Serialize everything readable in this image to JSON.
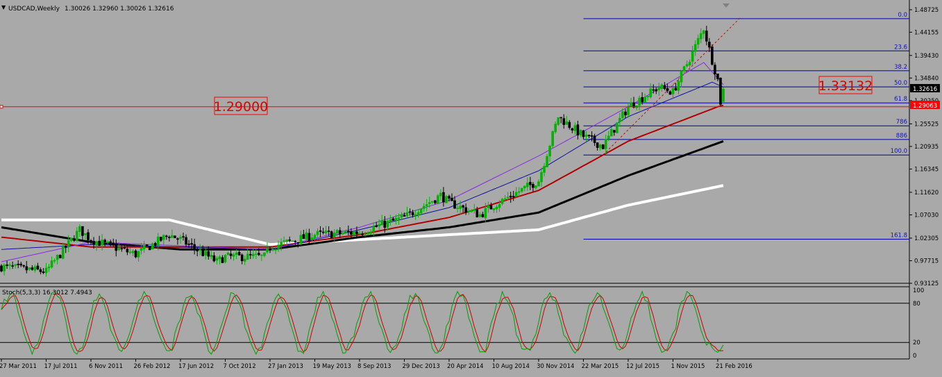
{
  "header": {
    "symbol": "USDCAD,Weekly",
    "ohlc": "1.30026 1.32960 1.30026 1.32616"
  },
  "stoch_header": "Stoch(5,3,3) 16.3012 7.4943",
  "colors": {
    "background": "#a9a9a9",
    "bull": "#00b400",
    "bear": "#000000",
    "fib": "#0000aa",
    "ma1": "#ffffff",
    "ma2": "#000000",
    "ma3": "#b00000",
    "ma4": "#1010a0",
    "ma5": "#8a2be2",
    "stoch_main": "#00a000",
    "stoch_signal": "#d00000",
    "callout": "#ff0000"
  },
  "price_scale": [
    "1.48725",
    "1.44155",
    "1.39430",
    "1.34840",
    "1.30250",
    "1.25525",
    "1.20935",
    "1.16345",
    "1.11620",
    "1.07030",
    "1.02305",
    "0.97715",
    "0.93125"
  ],
  "stoch_scale": [
    "100",
    "80",
    "20",
    "0"
  ],
  "time_labels": [
    "27 Mar 2011",
    "17 Jul 2011",
    "6 Nov 2011",
    "26 Feb 2012",
    "17 Jun 2012",
    "7 Oct 2012",
    "27 Jan 2013",
    "19 May 2013",
    "8 Sep 2013",
    "29 Dec 2013",
    "20 Apr 2014",
    "10 Aug 2014",
    "30 Nov 2014",
    "22 Mar 2015",
    "12 Jul 2015",
    "1 Nov 2015",
    "21 Feb 2016"
  ],
  "fib_labels": [
    "0.0",
    "23.6",
    "38.2",
    "50.0",
    "61.8",
    "786",
    "886",
    "100.0",
    "161.8"
  ],
  "callouts": {
    "left": "1.29000",
    "right": "1.33132"
  },
  "markers": {
    "current": "1.32616",
    "line": "1.29063"
  },
  "chart_data": {
    "type": "candlestick",
    "title": "USDCAD,Weekly",
    "symbol": "USDCAD",
    "timeframe": "Weekly",
    "last_bar": {
      "open": 1.30026,
      "high": 1.3296,
      "low": 1.30026,
      "close": 1.32616
    },
    "ylim": [
      0.93125,
      1.48725
    ],
    "x_start": "27 Mar 2011",
    "x_end": "21 Feb 2016",
    "horizontal_line": 1.29,
    "fibonacci": {
      "levels": [
        {
          "label": "0.0",
          "ratio": 0.0
        },
        {
          "label": "23.6",
          "ratio": 0.236
        },
        {
          "label": "38.2",
          "ratio": 0.382
        },
        {
          "label": "50.0",
          "ratio": 0.5
        },
        {
          "label": "61.8",
          "ratio": 0.618
        },
        {
          "label": "786",
          "ratio": 0.786
        },
        {
          "label": "886",
          "ratio": 0.886
        },
        {
          "label": "100.0",
          "ratio": 1.0
        },
        {
          "label": "161.8",
          "ratio": 1.618
        }
      ],
      "high": 1.469,
      "low": 1.192
    },
    "anchors": [
      {
        "date": "27 Mar 2011",
        "close": 0.965
      },
      {
        "date": "17 Jul 2011",
        "close": 0.955
      },
      {
        "date": "9 Oct 2011",
        "close": 1.04
      },
      {
        "date": "6 Nov 2011",
        "close": 1.02
      },
      {
        "date": "26 Feb 2012",
        "close": 0.99
      },
      {
        "date": "20 May 2012",
        "close": 1.03
      },
      {
        "date": "17 Jun 2012",
        "close": 1.02
      },
      {
        "date": "16 Sep 2012",
        "close": 0.975
      },
      {
        "date": "7 Oct 2012",
        "close": 0.985
      },
      {
        "date": "13 Jan 2013",
        "close": 0.985
      },
      {
        "date": "27 Jan 2013",
        "close": 1.005
      },
      {
        "date": "19 May 2013",
        "close": 1.03
      },
      {
        "date": "8 Sep 2013",
        "close": 1.035
      },
      {
        "date": "29 Dec 2013",
        "close": 1.065
      },
      {
        "date": "30 Mar 2014",
        "close": 1.11
      },
      {
        "date": "20 Apr 2014",
        "close": 1.095
      },
      {
        "date": "6 Jul 2014",
        "close": 1.07
      },
      {
        "date": "10 Aug 2014",
        "close": 1.09
      },
      {
        "date": "30 Nov 2014",
        "close": 1.14
      },
      {
        "date": "18 Jan 2015",
        "close": 1.27
      },
      {
        "date": "22 Mar 2015",
        "close": 1.23
      },
      {
        "date": "10 May 2015",
        "close": 1.21
      },
      {
        "date": "12 Jul 2015",
        "close": 1.29
      },
      {
        "date": "27 Sep 2015",
        "close": 1.33
      },
      {
        "date": "1 Nov 2015",
        "close": 1.32
      },
      {
        "date": "20 Dec 2015",
        "close": 1.4
      },
      {
        "date": "17 Jan 2016",
        "close": 1.45
      },
      {
        "date": "7 Feb 2016",
        "close": 1.385
      },
      {
        "date": "21 Feb 2016",
        "close": 1.345
      },
      {
        "date": "28 Feb 2016",
        "close": 1.3
      },
      {
        "date": "6 Mar 2016",
        "close": 1.326
      }
    ],
    "moving_averages": [
      {
        "color": "#ffffff",
        "points": [
          {
            "date": "27 Mar 2011",
            "value": 1.06
          },
          {
            "date": "20 May 2012",
            "value": 1.06
          },
          {
            "date": "27 Jan 2013",
            "value": 1.01
          },
          {
            "date": "8 Sep 2013",
            "value": 1.02
          },
          {
            "date": "30 Nov 2014",
            "value": 1.04
          },
          {
            "date": "12 Jul 2015",
            "value": 1.09
          },
          {
            "date": "6 Mar 2016",
            "value": 1.13
          }
        ]
      },
      {
        "color": "#000000",
        "points": [
          {
            "date": "27 Mar 2011",
            "value": 1.045
          },
          {
            "date": "6 Nov 2011",
            "value": 1.015
          },
          {
            "date": "17 Jun 2012",
            "value": 1.0
          },
          {
            "date": "27 Jan 2013",
            "value": 1.0
          },
          {
            "date": "8 Sep 2013",
            "value": 1.025
          },
          {
            "date": "20 Apr 2014",
            "value": 1.045
          },
          {
            "date": "30 Nov 2014",
            "value": 1.075
          },
          {
            "date": "12 Jul 2015",
            "value": 1.15
          },
          {
            "date": "6 Mar 2016",
            "value": 1.22
          }
        ]
      },
      {
        "color": "#b00000",
        "points": [
          {
            "date": "27 Mar 2011",
            "value": 1.025
          },
          {
            "date": "6 Nov 2011",
            "value": 1.005
          },
          {
            "date": "27 Jan 2013",
            "value": 1.005
          },
          {
            "date": "8 Sep 2013",
            "value": 1.03
          },
          {
            "date": "20 Apr 2014",
            "value": 1.065
          },
          {
            "date": "30 Nov 2014",
            "value": 1.12
          },
          {
            "date": "12 Jul 2015",
            "value": 1.22
          },
          {
            "date": "21 Feb 2016",
            "value": 1.29
          },
          {
            "date": "6 Mar 2016",
            "value": 1.293
          }
        ]
      },
      {
        "color": "#1010a0",
        "points": [
          {
            "date": "27 Mar 2011",
            "value": 1.0
          },
          {
            "date": "6 Nov 2011",
            "value": 1.01
          },
          {
            "date": "27 Jan 2013",
            "value": 1.0
          },
          {
            "date": "8 Sep 2013",
            "value": 1.04
          },
          {
            "date": "20 Apr 2014",
            "value": 1.085
          },
          {
            "date": "30 Nov 2014",
            "value": 1.16
          },
          {
            "date": "12 Jul 2015",
            "value": 1.27
          },
          {
            "date": "7 Feb 2016",
            "value": 1.34
          },
          {
            "date": "6 Mar 2016",
            "value": 1.33
          }
        ]
      },
      {
        "color": "#8a2be2",
        "points": [
          {
            "date": "27 Mar 2011",
            "value": 0.975
          },
          {
            "date": "6 Nov 2011",
            "value": 1.015
          },
          {
            "date": "27 Jan 2013",
            "value": 1.0
          },
          {
            "date": "8 Sep 2013",
            "value": 1.045
          },
          {
            "date": "20 Apr 2014",
            "value": 1.1
          },
          {
            "date": "30 Nov 2014",
            "value": 1.19
          },
          {
            "date": "12 Jul 2015",
            "value": 1.29
          },
          {
            "date": "17 Jan 2016",
            "value": 1.38
          },
          {
            "date": "6 Mar 2016",
            "value": 1.335
          }
        ]
      }
    ],
    "stochastic": {
      "k": 16.3012,
      "d": 7.4943,
      "levels": [
        80,
        20
      ],
      "ylim": [
        0,
        100
      ]
    }
  }
}
